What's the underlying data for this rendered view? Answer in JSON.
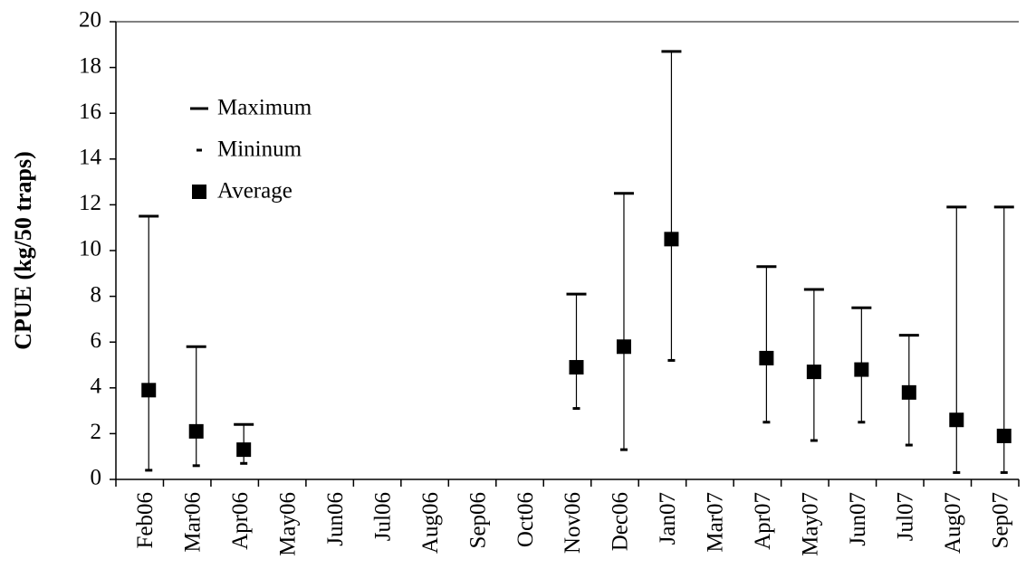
{
  "chart_data": {
    "type": "range",
    "y_label": "CPUE (kg/50 traps)",
    "categories": [
      "Feb06",
      "Mar06",
      "Apr06",
      "May06",
      "Jun06",
      "Jul06",
      "Aug06",
      "Sep06",
      "Oct06",
      "Nov06",
      "Dec06",
      "Jan07",
      "Mar07",
      "Apr07",
      "May07",
      "Jun07",
      "Jul07",
      "Aug07",
      "Sep07"
    ],
    "series": [
      {
        "name": "Maximum",
        "color": "#000000",
        "values": [
          11.5,
          5.8,
          2.4,
          null,
          null,
          null,
          null,
          null,
          null,
          8.1,
          12.5,
          18.7,
          null,
          9.3,
          8.3,
          7.5,
          6.3,
          11.9,
          11.9
        ]
      },
      {
        "name": "Mininum",
        "color": "#000000",
        "values": [
          0.4,
          0.6,
          0.7,
          null,
          null,
          null,
          null,
          null,
          null,
          3.1,
          1.3,
          5.2,
          null,
          2.5,
          1.7,
          2.5,
          1.5,
          0.3,
          0.3
        ]
      },
      {
        "name": "Average",
        "color": "#000000",
        "values": [
          3.9,
          2.1,
          1.3,
          null,
          null,
          null,
          null,
          null,
          null,
          4.9,
          5.8,
          10.5,
          null,
          5.3,
          4.7,
          4.8,
          3.8,
          2.6,
          1.9
        ]
      }
    ],
    "ylim": [
      0,
      20
    ],
    "yticks": [
      0,
      2,
      4,
      6,
      8,
      10,
      12,
      14,
      16,
      18,
      20
    ]
  }
}
